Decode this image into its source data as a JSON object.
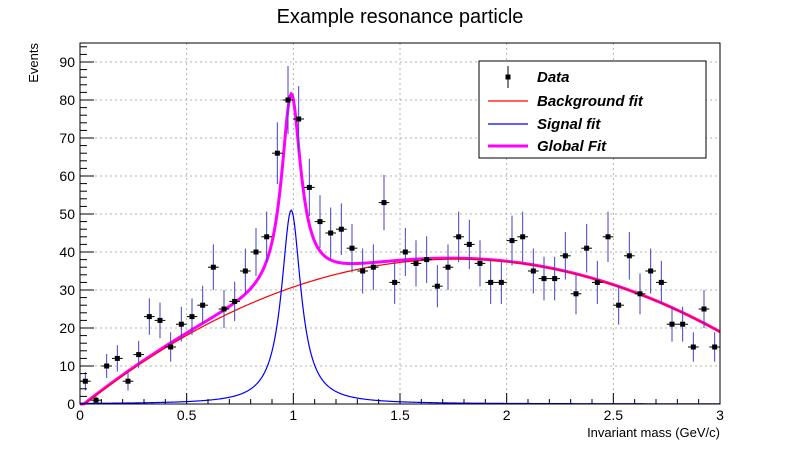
{
  "chart_data": {
    "type": "scatter",
    "title": "Example resonance particle",
    "xlabel": "Invariant mass (GeV/c)",
    "ylabel": "Events",
    "xlim": [
      0,
      3
    ],
    "ylim": [
      0,
      95
    ],
    "xticks": [
      "0",
      "0.5",
      "1",
      "1.5",
      "2",
      "2.5",
      "3"
    ],
    "yticks": [
      "0",
      "10",
      "20",
      "30",
      "40",
      "50",
      "60",
      "70",
      "80",
      "90"
    ],
    "grid": true,
    "legend_position": "top-right",
    "colors": {
      "data": "#000000",
      "error_bar": "#4040c8",
      "background_fit": "#ff0000",
      "signal_fit": "#0000ff",
      "global_fit": "#ff00ff"
    },
    "data_points": {
      "name": "Data",
      "bin_width": 0.05,
      "x": [
        0.025,
        0.075,
        0.125,
        0.175,
        0.225,
        0.275,
        0.325,
        0.375,
        0.425,
        0.475,
        0.525,
        0.575,
        0.625,
        0.675,
        0.725,
        0.775,
        0.825,
        0.875,
        0.925,
        0.975,
        1.025,
        1.075,
        1.125,
        1.175,
        1.225,
        1.275,
        1.325,
        1.375,
        1.425,
        1.475,
        1.525,
        1.575,
        1.625,
        1.675,
        1.725,
        1.775,
        1.825,
        1.875,
        1.925,
        1.975,
        2.025,
        2.075,
        2.125,
        2.175,
        2.225,
        2.275,
        2.325,
        2.375,
        2.425,
        2.475,
        2.525,
        2.575,
        2.625,
        2.675,
        2.725,
        2.775,
        2.825,
        2.875,
        2.925,
        2.975
      ],
      "y": [
        6,
        1,
        10,
        12,
        6,
        13,
        23,
        22,
        15,
        21,
        23,
        26,
        36,
        25,
        27,
        35,
        40,
        44,
        66,
        80,
        75,
        57,
        48,
        45,
        46,
        41,
        35,
        36,
        53,
        32,
        40,
        37,
        38,
        31,
        36,
        44,
        42,
        37,
        32,
        32,
        43,
        44,
        35,
        33,
        33,
        39,
        29,
        41,
        32,
        44,
        26,
        39,
        29,
        35,
        32,
        21,
        21,
        15,
        25,
        15
      ]
    },
    "series": [
      {
        "name": "Background fit",
        "type": "line",
        "model": "quadratic",
        "coefficients": [
          -0.95,
          44.29,
          -12.55
        ]
      },
      {
        "name": "Signal fit",
        "type": "line",
        "model": "lorentzian",
        "peak": 51,
        "mean": 0.99,
        "gamma": 0.055
      },
      {
        "name": "Global Fit",
        "type": "line",
        "model": "background + signal"
      }
    ]
  }
}
